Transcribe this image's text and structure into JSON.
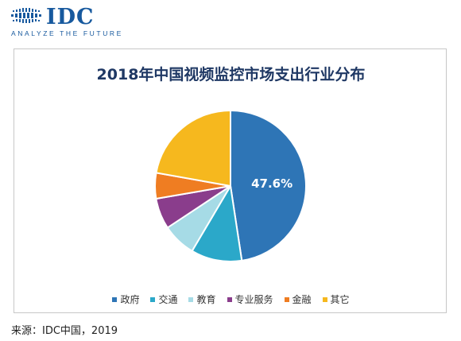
{
  "logo": {
    "brand": "IDC",
    "tagline": "ANALYZE THE FUTURE"
  },
  "chart_data": {
    "type": "pie",
    "title": "2018年中国视频监控市场支出行业分布",
    "categories": [
      "政府",
      "交通",
      "教育",
      "专业服务",
      "金融",
      "其它"
    ],
    "values": [
      47.6,
      10.9,
      7.2,
      6.6,
      5.5,
      22.2
    ],
    "colors": [
      "#2e75b6",
      "#2ba8c9",
      "#a6dbe6",
      "#8a3d8c",
      "#ef7d22",
      "#f6b81e"
    ],
    "data_labels": [
      "47.6%",
      "",
      "",
      "",
      "",
      ""
    ],
    "legend_position": "bottom"
  },
  "source": "来源：IDC中国，2019"
}
